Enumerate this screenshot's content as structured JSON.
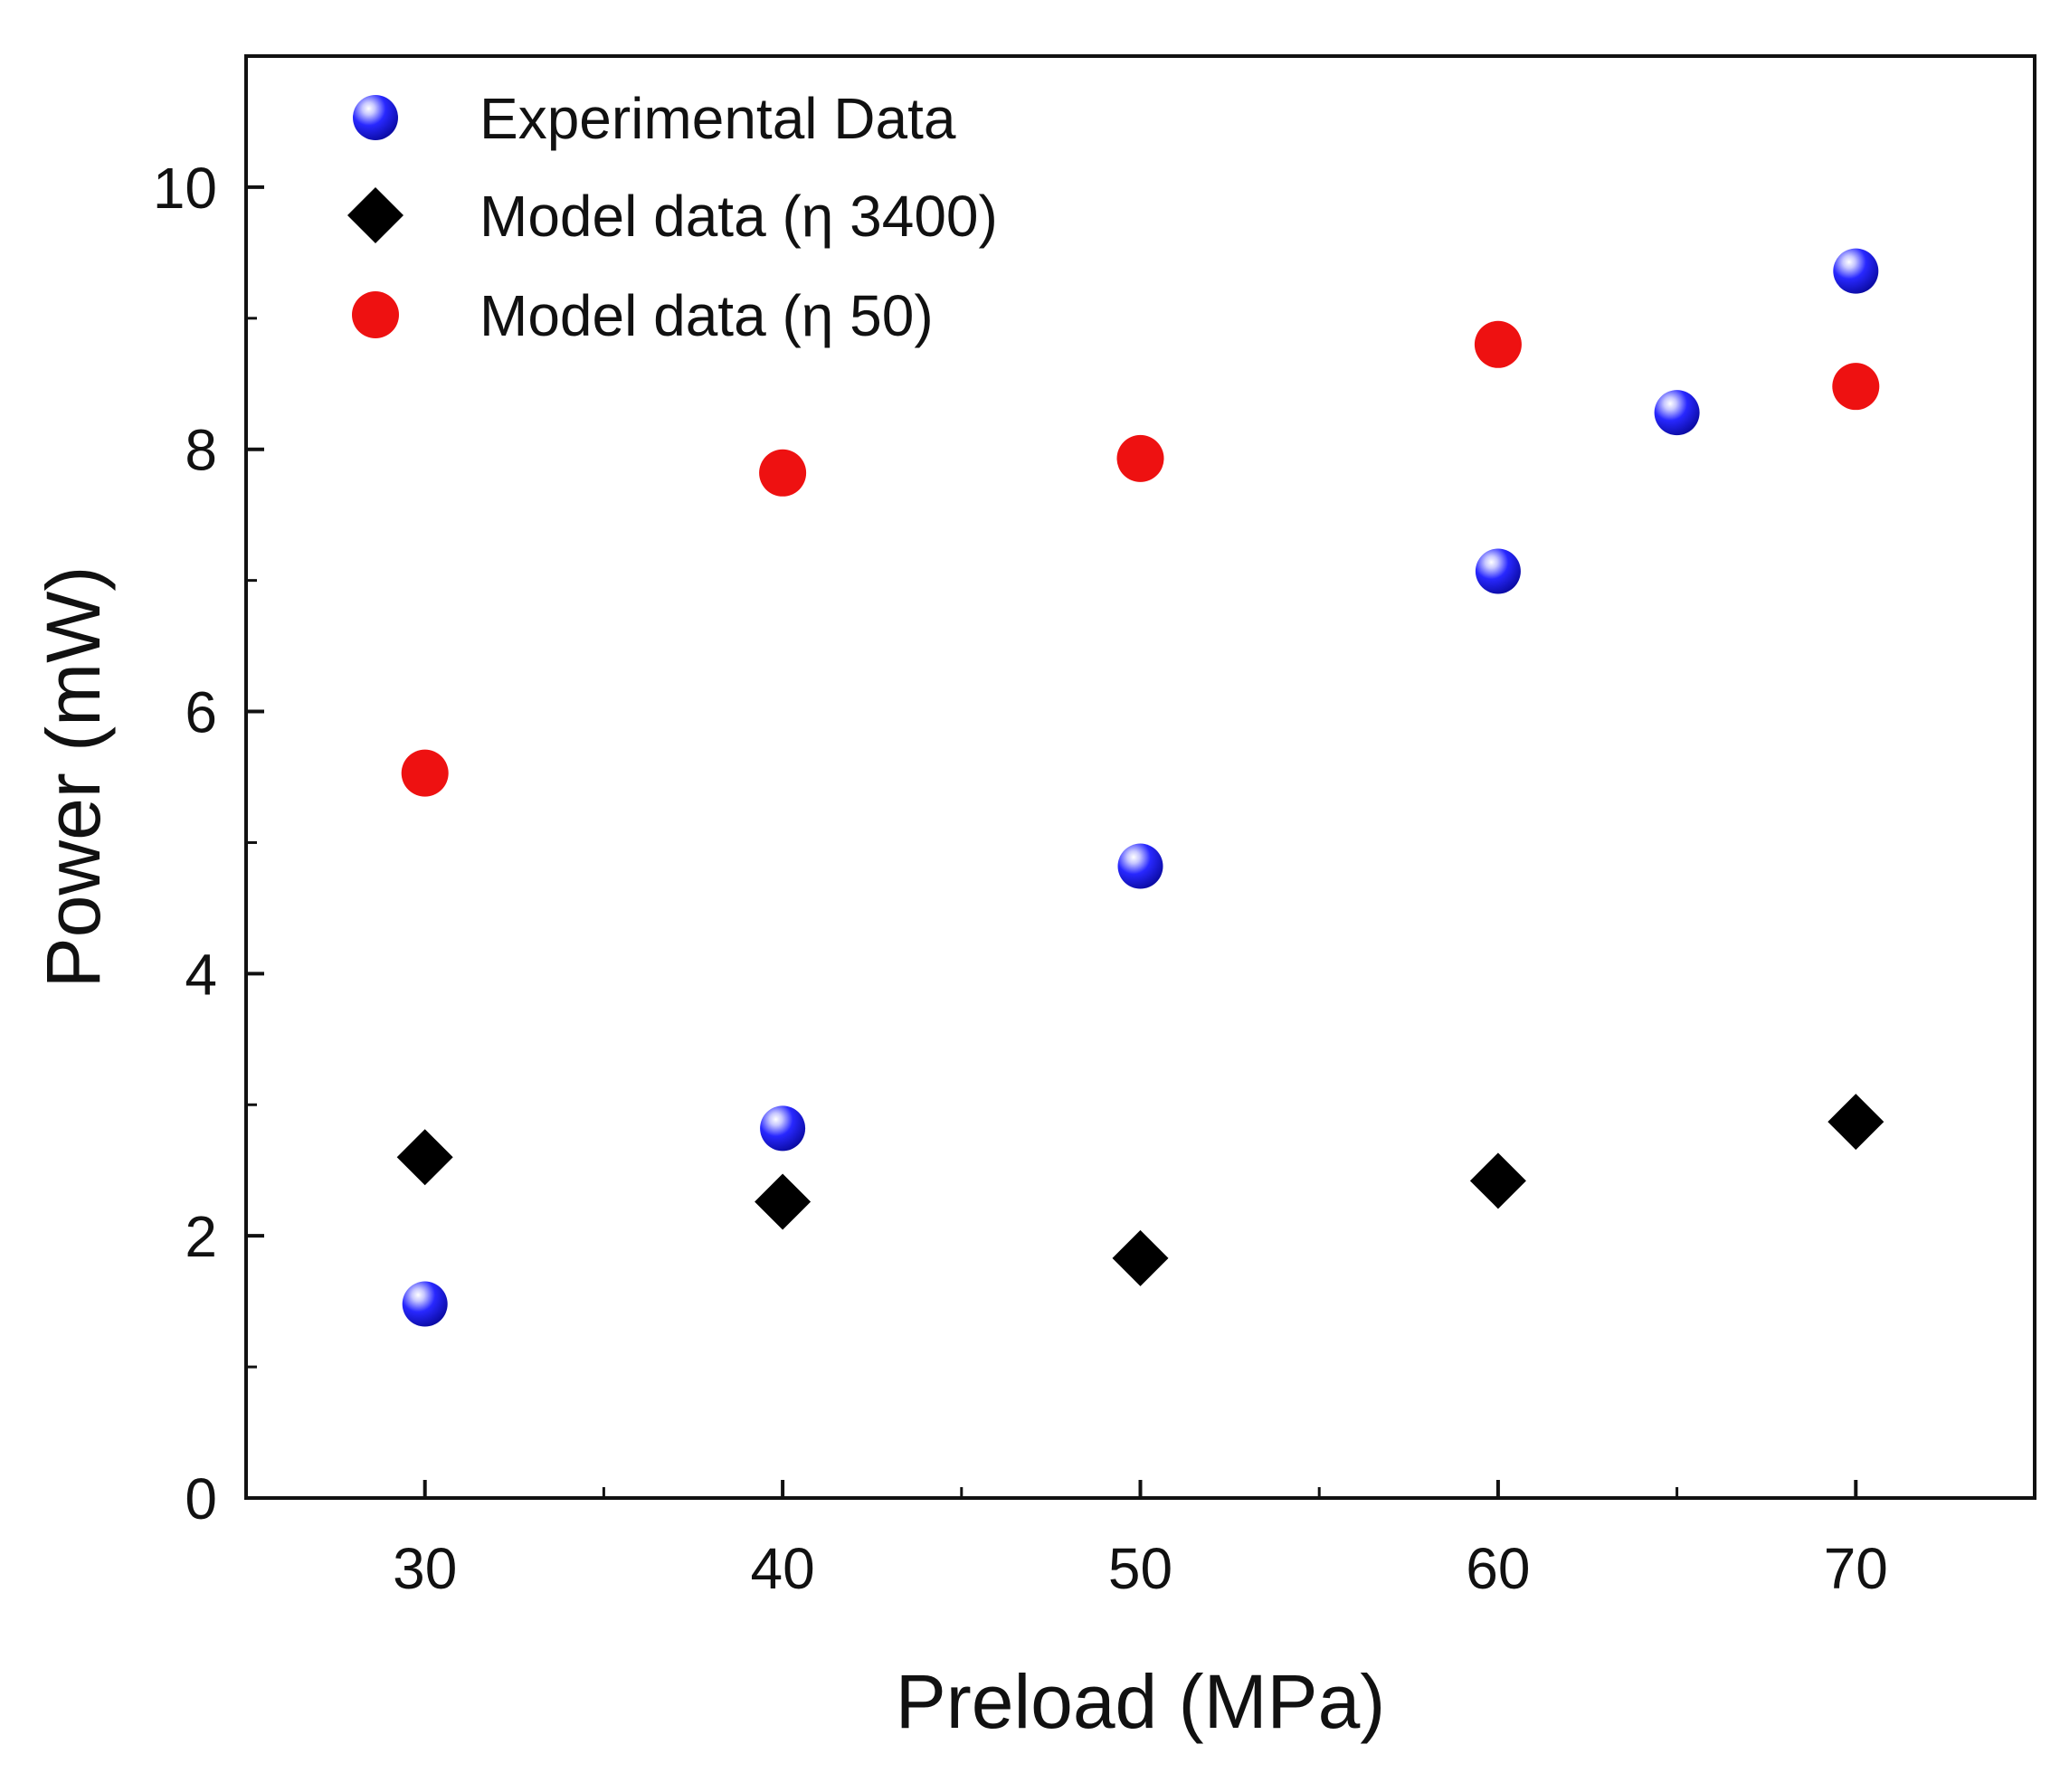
{
  "chart_data": {
    "type": "scatter",
    "xlabel": "Preload (MPa)",
    "ylabel": "Power (mW)",
    "xlim": [
      25,
      75
    ],
    "ylim": [
      0,
      11
    ],
    "x_ticks": [
      30,
      40,
      50,
      60,
      70
    ],
    "x_minor_ticks": [
      35,
      45,
      55,
      65
    ],
    "y_ticks": [
      0,
      2,
      4,
      6,
      8,
      10
    ],
    "y_minor_ticks": [
      1,
      3,
      5,
      7,
      9
    ],
    "grid": false,
    "legend_position": "top-left",
    "series": [
      {
        "name": "Experimental Data",
        "marker": "sphere",
        "color": "#1010e0",
        "points": [
          {
            "x": 30,
            "y": 1.48
          },
          {
            "x": 40,
            "y": 2.82
          },
          {
            "x": 50,
            "y": 4.82
          },
          {
            "x": 60,
            "y": 7.07
          },
          {
            "x": 65,
            "y": 8.28
          },
          {
            "x": 70,
            "y": 9.36
          }
        ]
      },
      {
        "name": "Model data (η 3400)",
        "marker": "diamond",
        "color": "#000000",
        "points": [
          {
            "x": 30,
            "y": 2.6
          },
          {
            "x": 40,
            "y": 2.26
          },
          {
            "x": 50,
            "y": 1.83
          },
          {
            "x": 60,
            "y": 2.42
          },
          {
            "x": 70,
            "y": 2.87
          }
        ]
      },
      {
        "name": "Model data (η 50)",
        "marker": "circle",
        "color": "#ee1111",
        "points": [
          {
            "x": 30,
            "y": 5.53
          },
          {
            "x": 40,
            "y": 7.82
          },
          {
            "x": 50,
            "y": 7.93
          },
          {
            "x": 60,
            "y": 8.8
          },
          {
            "x": 70,
            "y": 8.48
          }
        ]
      }
    ]
  }
}
